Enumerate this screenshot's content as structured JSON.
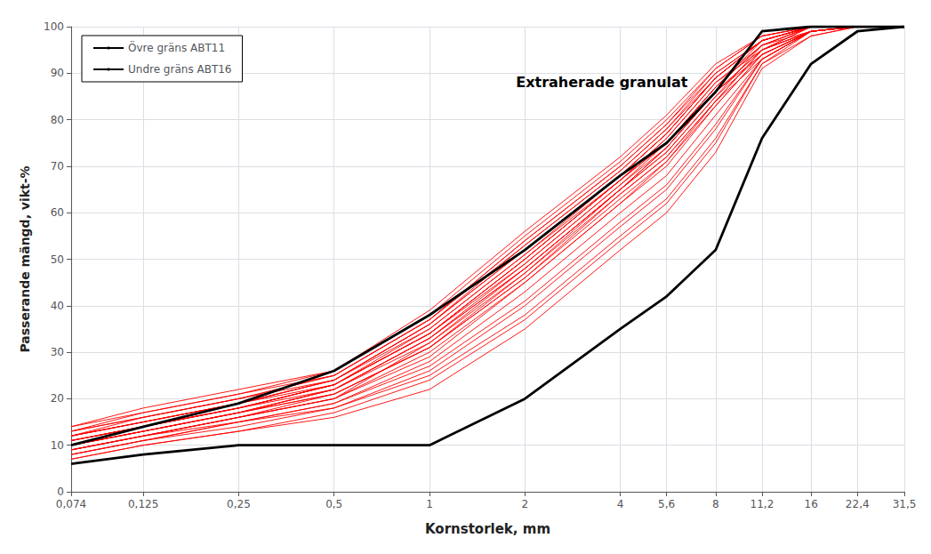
{
  "chart_data": {
    "type": "line",
    "xlabel": "Kornstorlek, mm",
    "ylabel": "Passerande mängd, vikt-%",
    "annotation": "Extraherade granulat",
    "log": "x",
    "grid": true,
    "legend": "upper left",
    "xlim": [
      0.074,
      31.5
    ],
    "xticks": [
      {
        "value": 0.074,
        "label": "0,074"
      },
      {
        "value": 0.125,
        "label": "0,125"
      },
      {
        "value": 0.25,
        "label": "0,25"
      },
      {
        "value": 0.5,
        "label": "0,5"
      },
      1,
      2,
      4,
      {
        "value": 5.6,
        "label": "5,6"
      },
      8,
      {
        "value": 11.2,
        "label": "11,2"
      },
      16,
      {
        "value": 22.4,
        "label": "22,4"
      },
      {
        "value": 31.5,
        "label": "31,5"
      }
    ],
    "ylim": [
      0,
      100
    ],
    "yticks": [
      0,
      10,
      20,
      30,
      40,
      50,
      60,
      70,
      80,
      90,
      100
    ],
    "x": [
      0.074,
      0.125,
      0.25,
      0.5,
      1,
      2,
      4,
      5.6,
      8,
      11.2,
      16,
      22.4,
      31.5
    ],
    "series": [
      {
        "color": "red",
        "values": [
          7,
          10,
          13,
          16,
          22,
          35,
          52,
          60,
          73,
          91,
          98,
          100,
          100
        ]
      },
      {
        "color": "red",
        "values": [
          8,
          11,
          14,
          18,
          25,
          38,
          55,
          63,
          76,
          92,
          99,
          100,
          100
        ]
      },
      {
        "color": "red",
        "values": [
          9,
          12,
          15,
          19,
          27,
          41,
          58,
          66,
          79,
          93,
          99,
          100,
          100
        ]
      },
      {
        "color": "red",
        "values": [
          7,
          10,
          13,
          17,
          24,
          37,
          54,
          62,
          75,
          92,
          98,
          100,
          100
        ]
      },
      {
        "color": "red",
        "values": [
          8,
          11,
          15,
          19,
          28,
          43,
          60,
          68,
          81,
          93,
          99,
          100,
          100
        ]
      },
      {
        "color": "red",
        "values": [
          9,
          12,
          16,
          20,
          29,
          45,
          62,
          70,
          83,
          94,
          99,
          100,
          100
        ]
      },
      {
        "color": "red",
        "values": [
          10,
          13,
          17,
          21,
          31,
          46,
          63,
          71,
          84,
          95,
          99,
          100,
          100
        ]
      },
      {
        "color": "red",
        "values": [
          8,
          11,
          15,
          18,
          26,
          40,
          57,
          65,
          78,
          93,
          99,
          100,
          100
        ]
      },
      {
        "color": "red",
        "values": [
          9,
          12,
          16,
          20,
          32,
          48,
          65,
          73,
          85,
          94,
          99,
          100,
          100
        ]
      },
      {
        "color": "red",
        "values": [
          10,
          13,
          17,
          22,
          33,
          49,
          66,
          74,
          86,
          95,
          100,
          100,
          100
        ]
      },
      {
        "color": "red",
        "values": [
          11,
          14,
          18,
          23,
          34,
          50,
          67,
          75,
          87,
          96,
          100,
          100,
          100
        ]
      },
      {
        "color": "red",
        "values": [
          9,
          12,
          16,
          20,
          30,
          45,
          62,
          71,
          83,
          94,
          99,
          100,
          100
        ]
      },
      {
        "color": "red",
        "values": [
          10,
          13,
          17,
          22,
          33,
          48,
          65,
          74,
          86,
          95,
          99,
          100,
          100
        ]
      },
      {
        "color": "red",
        "values": [
          11,
          14,
          18,
          23,
          35,
          51,
          67,
          76,
          88,
          96,
          100,
          100,
          100
        ]
      },
      {
        "color": "red",
        "values": [
          12,
          15,
          19,
          24,
          36,
          52,
          68,
          77,
          89,
          97,
          100,
          100,
          100
        ]
      },
      {
        "color": "red",
        "values": [
          10,
          13,
          17,
          21,
          31,
          46,
          64,
          72,
          84,
          95,
          99,
          100,
          100
        ]
      },
      {
        "color": "red",
        "values": [
          11,
          14,
          18,
          22,
          32,
          47,
          65,
          73,
          85,
          96,
          99,
          100,
          100
        ]
      },
      {
        "color": "red",
        "values": [
          12,
          15,
          19,
          23,
          34,
          49,
          66,
          75,
          87,
          97,
          100,
          100,
          100
        ]
      },
      {
        "color": "red",
        "values": [
          13,
          16,
          20,
          24,
          35,
          51,
          68,
          77,
          89,
          97,
          100,
          100,
          100
        ]
      },
      {
        "color": "red",
        "values": [
          11,
          14,
          18,
          23,
          34,
          50,
          67,
          75,
          87,
          96,
          100,
          100,
          100
        ]
      },
      {
        "color": "red",
        "values": [
          12,
          15,
          19,
          24,
          36,
          53,
          69,
          78,
          89,
          97,
          100,
          100,
          100
        ]
      },
      {
        "color": "red",
        "values": [
          9,
          12,
          16,
          21,
          31,
          47,
          64,
          72,
          84,
          93,
          99,
          100,
          100
        ]
      },
      {
        "color": "red",
        "values": [
          10,
          13,
          17,
          22,
          33,
          48,
          65,
          74,
          86,
          94,
          99,
          100,
          100
        ]
      },
      {
        "color": "red",
        "values": [
          11,
          14,
          18,
          23,
          34,
          50,
          67,
          76,
          88,
          95,
          100,
          100,
          100
        ]
      },
      {
        "color": "red",
        "values": [
          12,
          16,
          20,
          25,
          37,
          54,
          70,
          79,
          90,
          97,
          100,
          100,
          100
        ]
      },
      {
        "color": "red",
        "values": [
          13,
          17,
          21,
          26,
          38,
          55,
          71,
          80,
          91,
          98,
          100,
          100,
          100
        ]
      },
      {
        "color": "red",
        "values": [
          14,
          18,
          22,
          26,
          39,
          56,
          72,
          81,
          92,
          98,
          100,
          100,
          100
        ]
      },
      {
        "color": "red",
        "values": [
          12,
          15,
          19,
          24,
          36,
          52,
          68,
          77,
          89,
          97,
          100,
          100,
          100
        ]
      },
      {
        "color": "red",
        "values": [
          13,
          16,
          20,
          25,
          37,
          53,
          69,
          78,
          90,
          97,
          100,
          100,
          100
        ]
      },
      {
        "color": "red",
        "values": [
          14,
          17,
          21,
          25,
          37,
          54,
          70,
          79,
          91,
          98,
          100,
          100,
          100
        ]
      },
      {
        "name": "Övre gräns ABT11",
        "color": "black",
        "values": [
          10,
          14,
          19,
          26,
          38,
          52,
          68,
          75,
          86,
          99,
          100,
          100,
          100
        ]
      },
      {
        "name": "Undre gräns ABT16",
        "color": "black",
        "values": [
          6,
          8,
          10,
          10,
          10,
          20,
          35,
          42,
          52,
          76,
          92,
          99,
          100
        ]
      }
    ]
  }
}
